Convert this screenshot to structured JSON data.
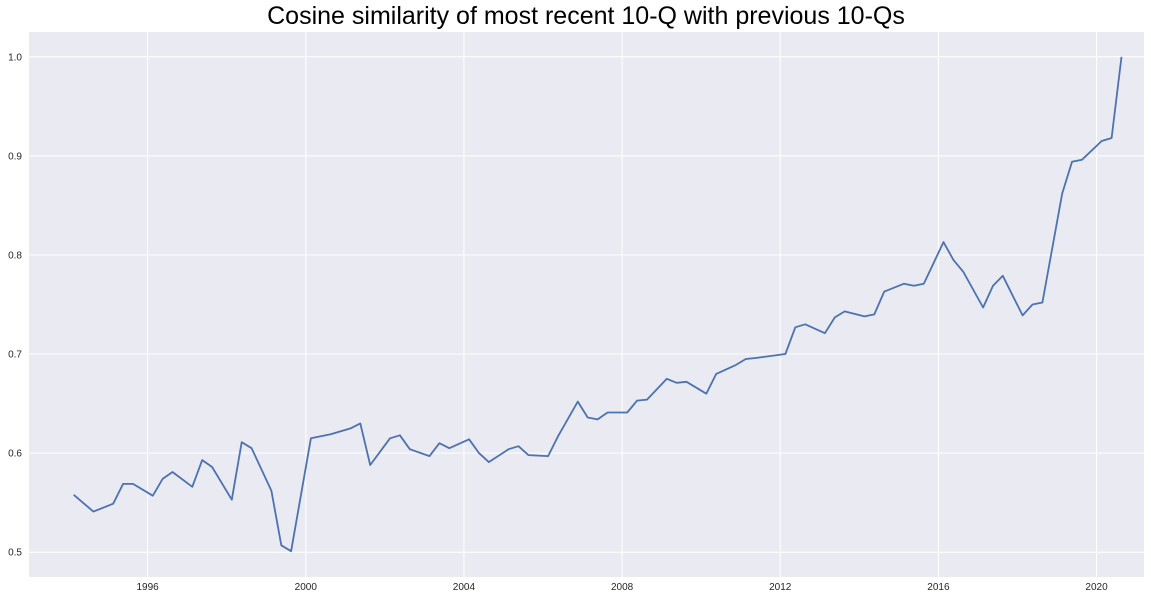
{
  "chart_data": {
    "type": "line",
    "title": "Cosine similarity of most recent 10-Q with previous 10-Qs",
    "xlabel": "",
    "ylabel": "",
    "xlim": [
      1993.0,
      2021.2
    ],
    "ylim": [
      0.475,
      1.025
    ],
    "x_ticks": [
      1996,
      2000,
      2004,
      2008,
      2012,
      2016,
      2020
    ],
    "y_ticks": [
      "0.5",
      "0.6",
      "0.7",
      "0.8",
      "0.9",
      "1.0"
    ],
    "grid": true,
    "legend": "none",
    "colors": {
      "background": "#eaeaf2",
      "grid": "#ffffff",
      "line": "#4c72b0"
    },
    "series": [
      {
        "x": [
          1994.13,
          1994.63,
          1995.13,
          1995.38,
          1995.63,
          1996.13,
          1996.38,
          1996.63,
          1997.13,
          1997.38,
          1997.63,
          1998.13,
          1998.38,
          1998.63,
          1999.13,
          1999.38,
          1999.63,
          2000.13,
          2000.63,
          2001.13,
          2001.38,
          2001.63,
          2002.13,
          2002.38,
          2002.63,
          2003.13,
          2003.38,
          2003.63,
          2004.13,
          2004.38,
          2004.63,
          2005.13,
          2005.38,
          2005.63,
          2006.13,
          2006.38,
          2006.88,
          2007.13,
          2007.38,
          2007.63,
          2008.13,
          2008.38,
          2008.63,
          2009.13,
          2009.38,
          2009.63,
          2010.13,
          2010.38,
          2010.88,
          2011.13,
          2011.38,
          2012.13,
          2012.38,
          2012.63,
          2013.13,
          2013.38,
          2013.63,
          2014.13,
          2014.38,
          2014.63,
          2015.13,
          2015.38,
          2015.63,
          2016.13,
          2016.38,
          2016.63,
          2017.13,
          2017.38,
          2017.63,
          2018.13,
          2018.38,
          2018.63,
          2019.13,
          2019.38,
          2019.63,
          2020.13,
          2020.38,
          2020.63
        ],
        "values": [
          0.558,
          0.541,
          0.549,
          0.569,
          0.569,
          0.557,
          0.574,
          0.581,
          0.566,
          0.593,
          0.586,
          0.553,
          0.611,
          0.605,
          0.562,
          0.507,
          0.501,
          0.615,
          0.619,
          0.625,
          0.63,
          0.588,
          0.615,
          0.618,
          0.604,
          0.597,
          0.61,
          0.605,
          0.614,
          0.6,
          0.591,
          0.604,
          0.607,
          0.598,
          0.597,
          0.617,
          0.652,
          0.636,
          0.634,
          0.641,
          0.641,
          0.653,
          0.654,
          0.675,
          0.671,
          0.672,
          0.66,
          0.68,
          0.689,
          0.695,
          0.696,
          0.7,
          0.727,
          0.73,
          0.721,
          0.737,
          0.743,
          0.738,
          0.74,
          0.763,
          0.771,
          0.769,
          0.771,
          0.813,
          0.795,
          0.783,
          0.747,
          0.769,
          0.779,
          0.739,
          0.75,
          0.752,
          0.862,
          0.894,
          0.896,
          0.915,
          0.918,
          1.0
        ]
      }
    ]
  }
}
